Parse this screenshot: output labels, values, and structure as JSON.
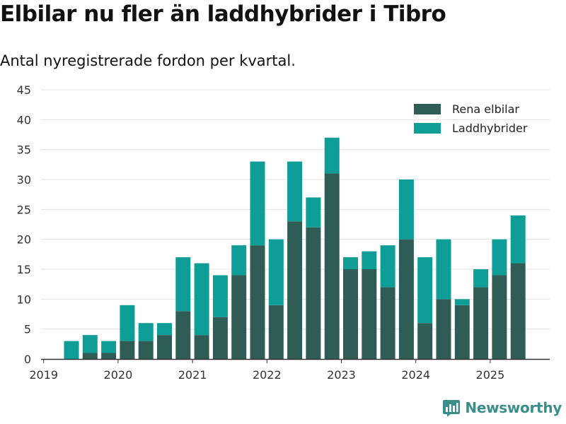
{
  "title": "Elbilar nu fler än laddhybrider i Tibro",
  "subtitle": "Antal nyregistrerade fordon per kvartal.",
  "brand": "Newsworthy",
  "colors": {
    "elbilar": "#2f5d56",
    "laddhybrider": "#0e9e97",
    "grid": "#e3e3e3",
    "axis": "#333333",
    "brand": "#3a8f8a"
  },
  "chart_data": {
    "type": "bar",
    "stacked": true,
    "title": "Elbilar nu fler än laddhybrider i Tibro",
    "subtitle": "Antal nyregistrerade fordon per kvartal.",
    "xlabel": "",
    "ylabel": "",
    "ylim": [
      0,
      45
    ],
    "yticks": [
      0,
      5,
      10,
      15,
      20,
      25,
      30,
      35,
      40,
      45
    ],
    "xtick_labels": [
      "2019",
      "2020",
      "2021",
      "2022",
      "2023",
      "2024",
      "2025"
    ],
    "grid": "horizontal",
    "legend_position": "top-right",
    "categories": [
      "2019 Q2",
      "2019 Q3",
      "2019 Q4",
      "2020 Q1",
      "2020 Q2",
      "2020 Q3",
      "2020 Q4",
      "2021 Q1",
      "2021 Q2",
      "2021 Q3",
      "2021 Q4",
      "2022 Q1",
      "2022 Q2",
      "2022 Q3",
      "2022 Q4",
      "2023 Q1",
      "2023 Q2",
      "2023 Q3",
      "2023 Q4",
      "2024 Q1",
      "2024 Q2",
      "2024 Q3",
      "2024 Q4",
      "2025 Q1",
      "2025 Q2"
    ],
    "series": [
      {
        "name": "Rena elbilar",
        "values": [
          0,
          1,
          1,
          3,
          3,
          4,
          8,
          4,
          7,
          14,
          19,
          9,
          23,
          22,
          31,
          15,
          15,
          12,
          20,
          6,
          10,
          9,
          12,
          14,
          16
        ]
      },
      {
        "name": "Laddhybrider",
        "values": [
          3,
          3,
          2,
          6,
          3,
          2,
          9,
          12,
          7,
          5,
          14,
          11,
          10,
          5,
          6,
          2,
          3,
          7,
          10,
          11,
          10,
          1,
          3,
          6,
          8
        ]
      }
    ]
  }
}
